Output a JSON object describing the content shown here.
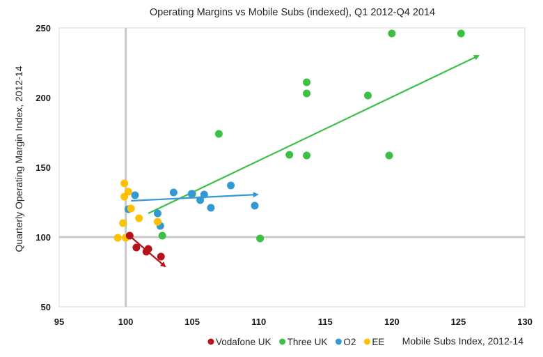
{
  "chart_data": {
    "type": "scatter",
    "title": "Operating Margins vs Mobile Subs (indexed), Q1 2012-Q4 2014",
    "xlabel": "Mobile Subs Index, 2012-14",
    "ylabel": "Quarterly Operating Margin Index, 2012-14",
    "xlim": [
      95,
      130
    ],
    "ylim": [
      50,
      250
    ],
    "xticks": [
      95,
      100,
      105,
      110,
      115,
      120,
      125,
      130
    ],
    "yticks": [
      50,
      100,
      150,
      200,
      250
    ],
    "reference_lines": {
      "x": 100,
      "y": 100
    },
    "grid": false,
    "legend_position": "bottom",
    "series": [
      {
        "name": "Vodafone UK",
        "color": "#b5121b",
        "points": [
          [
            100.3,
            101
          ],
          [
            100.8,
            92.5
          ],
          [
            101.7,
            91.5
          ],
          [
            101.55,
            89.5
          ],
          [
            102.65,
            86
          ]
        ],
        "trend_arrow": {
          "from": [
            100.4,
            100
          ],
          "to": [
            102.95,
            79
          ]
        }
      },
      {
        "name": "Three UK",
        "color": "#3cbf45",
        "points": [
          [
            120.0,
            246
          ],
          [
            125.2,
            246
          ],
          [
            113.6,
            211
          ],
          [
            113.6,
            203
          ],
          [
            118.2,
            201.5
          ],
          [
            107.0,
            174
          ],
          [
            112.3,
            159
          ],
          [
            113.6,
            158.5
          ],
          [
            119.8,
            158.5
          ],
          [
            105.0,
            131
          ],
          [
            102.75,
            101
          ],
          [
            110.1,
            99
          ]
        ],
        "trend_arrow": {
          "from": [
            101.7,
            117
          ],
          "to": [
            126.5,
            230
          ]
        }
      },
      {
        "name": "O2",
        "color": "#3399d4",
        "points": [
          [
            100.7,
            130
          ],
          [
            103.6,
            132
          ],
          [
            104.95,
            131
          ],
          [
            105.9,
            130.5
          ],
          [
            105.6,
            126.5
          ],
          [
            106.4,
            121
          ],
          [
            107.9,
            137
          ],
          [
            109.7,
            122.5
          ],
          [
            100.2,
            120
          ],
          [
            102.4,
            117
          ],
          [
            102.6,
            108
          ]
        ],
        "trend_arrow": {
          "from": [
            100.4,
            126
          ],
          "to": [
            109.9,
            130.5
          ]
        }
      },
      {
        "name": "EE",
        "color": "#ffc000",
        "points": [
          [
            99.9,
            138.5
          ],
          [
            100.2,
            132.5
          ],
          [
            99.9,
            129
          ],
          [
            100.4,
            120.5
          ],
          [
            101.0,
            113.5
          ],
          [
            99.8,
            110
          ],
          [
            102.4,
            111
          ],
          [
            99.4,
            99.5
          ],
          [
            100.0,
            99.5
          ]
        ]
      }
    ]
  }
}
